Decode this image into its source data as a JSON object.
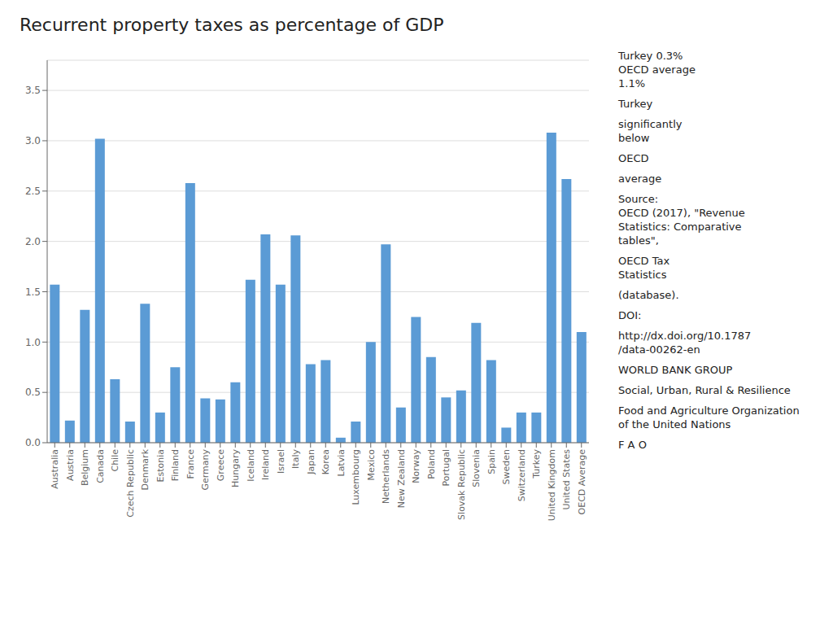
{
  "chart_data": {
    "type": "bar",
    "title": "Recurrent property taxes as percentage of GDP",
    "categories": [
      "Australia",
      "Austria",
      "Belgium",
      "Canada",
      "Chile",
      "Czech Republic",
      "Denmark",
      "Estonia",
      "Finland",
      "France",
      "Germany",
      "Greece",
      "Hungary",
      "Iceland",
      "Ireland",
      "Israel",
      "Italy",
      "Japan",
      "Korea",
      "Latvia",
      "Luxembourg",
      "Mexico",
      "Netherlands",
      "New Zealand",
      "Norway",
      "Poland",
      "Portugal",
      "Slovak Republic",
      "Slovenia",
      "Spain",
      "Sweden",
      "Switzerland",
      "Turkey",
      "United Kingdom",
      "United States",
      "OECD Average"
    ],
    "values": [
      1.57,
      0.22,
      1.32,
      3.02,
      0.63,
      0.21,
      1.38,
      0.3,
      0.75,
      2.58,
      0.44,
      0.43,
      0.6,
      1.62,
      2.07,
      1.57,
      2.06,
      0.78,
      0.82,
      0.05,
      0.21,
      1.0,
      1.97,
      0.35,
      1.25,
      0.85,
      0.45,
      0.52,
      1.19,
      0.82,
      0.15,
      0.3,
      0.3,
      3.08,
      2.62,
      1.1
    ],
    "color": "#5b9bd5",
    "ylim": [
      0,
      3.8
    ],
    "yticks": [
      {
        "value": 0,
        "label": "0.0"
      },
      0.5,
      {
        "value": 1,
        "label": "1.0"
      },
      1.5,
      {
        "value": 2,
        "label": "2.0"
      },
      2.5,
      {
        "value": 3,
        "label": "3.0"
      },
      3.5
    ],
    "grid": true,
    "annotations": [
      "Turkey 0.3%\nOECD average\n1.1%",
      "Turkey",
      "significantly\nbelow",
      "OECD",
      "average",
      "Source:\nOECD (2017), \"Revenue\nStatistics: Comparative\ntables\",",
      "OECD Tax\nStatistics",
      "(database).",
      "DOI:",
      "http://dx.doi.org/10.1787\n/data-00262-en",
      "WORLD BANK GROUP",
      "Social, Urban, Rural & Resilience",
      "Food and Agriculture Organization\nof the United Nations",
      "F A O"
    ]
  }
}
